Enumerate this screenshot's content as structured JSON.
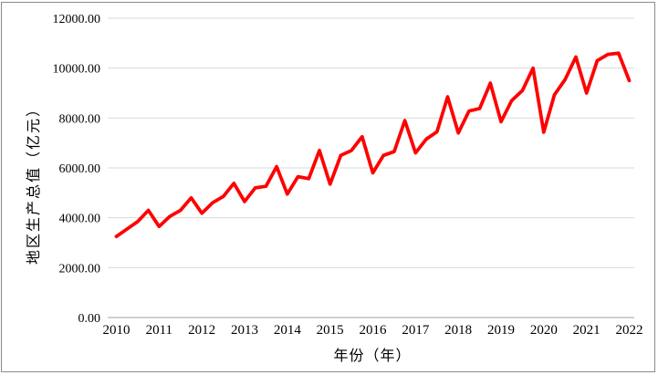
{
  "figure": {
    "background": "#ffffff",
    "border_color": "#8a8a8a"
  },
  "chart_data": {
    "type": "line",
    "title": "",
    "xlabel": "年份（年）",
    "ylabel": "地区生产总值（亿元）",
    "grid": "horizontal",
    "legend": "none",
    "line_color": "#ff0000",
    "gridline_color": "#d9d9d9",
    "axis_line_color": "#b3b3b3",
    "ylim": [
      0,
      12000
    ],
    "y_tick_step": 2000,
    "y_tick_labels": [
      "0.00",
      "2000.00",
      "4000.00",
      "6000.00",
      "8000.00",
      "10000.00",
      "12000.00"
    ],
    "x_tick_labels": [
      "2010",
      "2011",
      "2012",
      "2013",
      "2014",
      "2015",
      "2016",
      "2017",
      "2018",
      "2019",
      "2020",
      "2021",
      "2022"
    ],
    "x_unit": "quarter",
    "points_per_year": 4,
    "series": [
      {
        "name": "地区生产总值",
        "start": "2010Q1",
        "end": "2022Q1",
        "values": [
          3250,
          3550,
          3850,
          4300,
          3650,
          4050,
          4300,
          4800,
          4180,
          4600,
          4850,
          5380,
          4650,
          5200,
          5260,
          6050,
          4950,
          5650,
          5570,
          6700,
          5350,
          6500,
          6700,
          7250,
          5800,
          6500,
          6650,
          7900,
          6600,
          7150,
          7450,
          8850,
          7400,
          8280,
          8380,
          9400,
          7850,
          8700,
          9100,
          10000,
          7430,
          8930,
          9550,
          10450,
          9000,
          10300,
          10550,
          10600,
          9500
        ]
      }
    ]
  }
}
